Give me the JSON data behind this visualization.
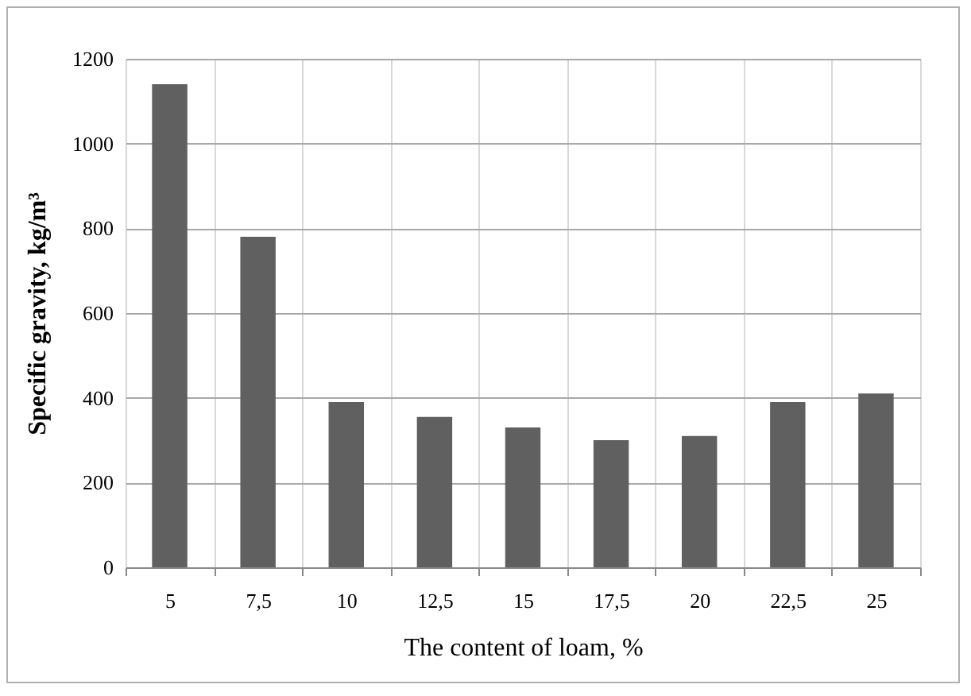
{
  "chart_data": {
    "type": "bar",
    "xlabel": "The content of loam, %",
    "ylabel": "Specific  gravity,  kg/m³",
    "categories": [
      "5",
      "7,5",
      "10",
      "12,5",
      "15",
      "17,5",
      "20",
      "22,5",
      "25"
    ],
    "values": [
      1140,
      780,
      390,
      355,
      330,
      300,
      310,
      390,
      410
    ],
    "color": "#606060",
    "ylim": [
      0,
      1200
    ],
    "yticks": [
      0,
      200,
      400,
      600,
      800,
      1000,
      1200
    ],
    "grid": true
  }
}
